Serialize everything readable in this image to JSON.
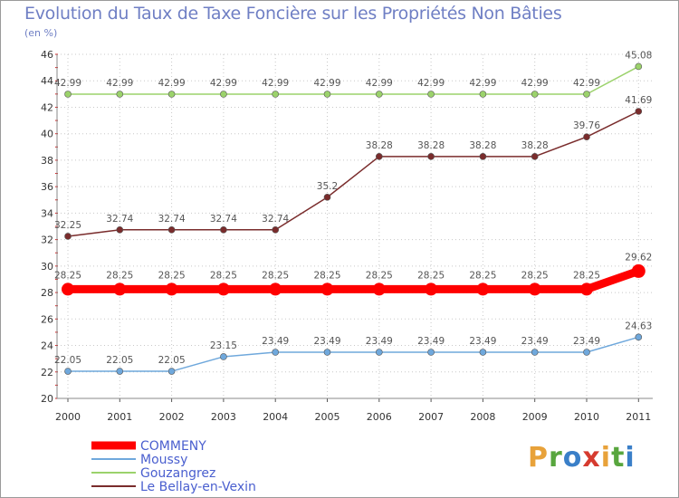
{
  "header": {
    "title": "Evolution du Taux de Taxe Foncière sur les Propriétés Non Bâties",
    "subtitle": "(en %)"
  },
  "logo": {
    "letters": [
      "P",
      "r",
      "o",
      "x",
      "i",
      "t",
      "i"
    ],
    "colors": [
      "#e8a23a",
      "#58a63e",
      "#3a7fc8",
      "#d63b2f",
      "#e8a23a",
      "#58a63e",
      "#3a7fc8"
    ]
  },
  "chart_data": {
    "type": "line",
    "title": "Evolution du Taux de Taxe Foncière sur les Propriétés Non Bâties",
    "ylabel": "(en %)",
    "xlabel": "",
    "x": [
      "2000",
      "2001",
      "2002",
      "2003",
      "2004",
      "2005",
      "2006",
      "2007",
      "2008",
      "2009",
      "2010",
      "2011"
    ],
    "ylim": [
      20,
      46
    ],
    "yticks": [
      "20",
      "22",
      "24",
      "26",
      "28",
      "30",
      "32",
      "34",
      "36",
      "38",
      "40",
      "42",
      "44",
      "46"
    ],
    "grid": true,
    "series": [
      {
        "name": "COMMENY",
        "color": "#ff0000",
        "emphasis": true,
        "values": [
          28.25,
          28.25,
          28.25,
          28.25,
          28.25,
          28.25,
          28.25,
          28.25,
          28.25,
          28.25,
          28.25,
          29.62
        ],
        "labels": [
          "28.25",
          "28.25",
          "28.25",
          "28.25",
          "28.25",
          "28.25",
          "28.25",
          "28.25",
          "28.25",
          "28.25",
          "28.25",
          "29.62"
        ]
      },
      {
        "name": "Moussy",
        "color": "#6fa8dc",
        "values": [
          22.05,
          22.05,
          22.05,
          23.15,
          23.49,
          23.49,
          23.49,
          23.49,
          23.49,
          23.49,
          23.49,
          24.63
        ],
        "labels": [
          "22.05",
          "22.05",
          "22.05",
          "23.15",
          "23.49",
          "23.49",
          "23.49",
          "23.49",
          "23.49",
          "23.49",
          "23.49",
          "24.63"
        ]
      },
      {
        "name": "Gouzangrez",
        "color": "#9bd26b",
        "values": [
          42.99,
          42.99,
          42.99,
          42.99,
          42.99,
          42.99,
          42.99,
          42.99,
          42.99,
          42.99,
          42.99,
          45.08
        ],
        "labels": [
          "42.99",
          "42.99",
          "42.99",
          "42.99",
          "42.99",
          "42.99",
          "42.99",
          "42.99",
          "42.99",
          "42.99",
          "42.99",
          "45.08"
        ]
      },
      {
        "name": "Le Bellay-en-Vexin",
        "color": "#7a2c2c",
        "values": [
          32.25,
          32.74,
          32.74,
          32.74,
          32.74,
          35.2,
          38.28,
          38.28,
          38.28,
          38.28,
          39.76,
          41.69
        ],
        "labels": [
          "32.25",
          "32.74",
          "32.74",
          "32.74",
          "32.74",
          "35.2",
          "38.28",
          "38.28",
          "38.28",
          "38.28",
          "39.76",
          "41.69"
        ]
      }
    ],
    "legend": "bottom-left"
  }
}
